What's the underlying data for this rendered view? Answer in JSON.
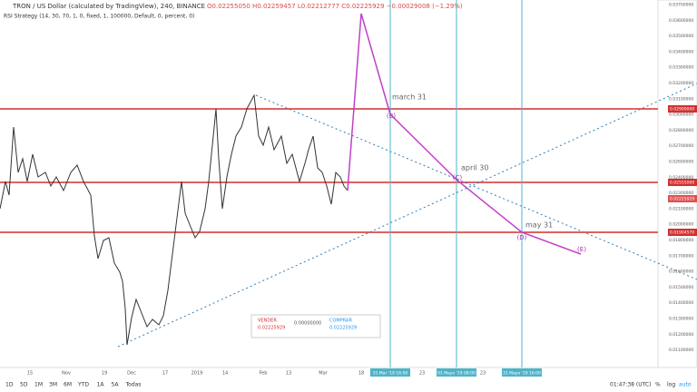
{
  "header": {
    "symbol": "TRON / US Dollar (calculated by TradingView), 240, BINANCE",
    "ohlc": "O0.02255050 H0.02259457 L0.02212777 C0.02225929 −0.00029008 (−1.29%)",
    "indicator": "RSI Strategy (14, 30, 70, 1, 0, fixed, 1, 100000, Default, 0, percent, 0)"
  },
  "price_axis": {
    "labels": [
      "0.03700000",
      "0.03600000",
      "0.03500000",
      "0.03400000",
      "0.03300000",
      "0.03200000",
      "0.03100000",
      "0.03000000",
      "0.02800000",
      "0.02700000",
      "0.02600000",
      "0.02400000",
      "0.02300000",
      "0.02100000",
      "0.02000000",
      "0.01800000",
      "0.01700000",
      "0.01600000",
      "0.01500000",
      "0.01400000",
      "0.01300000",
      "0.01200000",
      "0.01100000"
    ],
    "highlighted": [
      "0.02900000",
      "0.02555000",
      "0.02225929",
      "0.01904570"
    ]
  },
  "time_axis": {
    "labels": [
      "15",
      "Nov",
      "19",
      "Dec",
      "17",
      "2019",
      "14",
      "Feb",
      "13",
      "Mar",
      "18",
      "23",
      "23"
    ],
    "highlighted": [
      "31 Mar '19 16:00",
      "01 Mayo '19 08:00",
      "31 Mayo '19 16:00"
    ]
  },
  "annotations": [
    "march 31",
    "april 30",
    "may 31",
    "(B)",
    "(C)",
    "(D)",
    "(E)"
  ],
  "order_panel": {
    "sell_label": "VENDER",
    "sell_price": "0.02225929",
    "quantity": "0.00000000",
    "buy_label": "COMPRAR",
    "buy_price": "0.02225929"
  },
  "toolbar": {
    "ranges": [
      "1D",
      "5D",
      "1M",
      "3M",
      "6M",
      "YTD",
      "1A",
      "5A",
      "Todas"
    ],
    "clock": "01:47:38 (UTC)",
    "options": [
      "%",
      "log",
      "auto"
    ]
  }
}
